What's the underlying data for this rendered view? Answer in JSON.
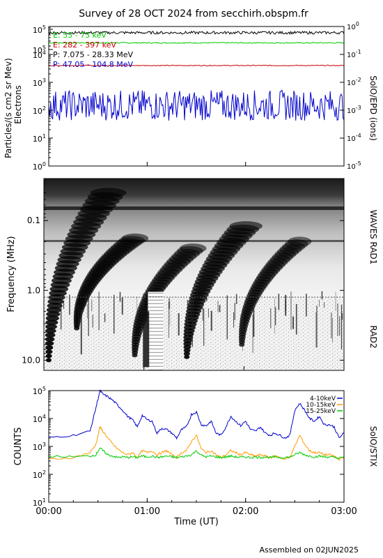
{
  "title": "Survey of 28 OCT 2024 from secchirh.obspm.fr",
  "footer": "Assembled on 02JUN2025",
  "colors": {
    "black": "#000000",
    "green": "#00cc00",
    "red": "#cc0000",
    "blue": "#0000cc",
    "orange": "#ff9900"
  },
  "chart_data": [
    {
      "type": "line",
      "title": "",
      "xlabel": "",
      "ylabel": "Particles/(s cm2 sr Mev)",
      "ylabel_sub": "Electrons",
      "right_label": "SolO/EPD (ions)",
      "yscale": "log",
      "ylim": [
        1,
        100000
      ],
      "y2lim": [
        1e-05,
        1
      ],
      "xlim": [
        0,
        3
      ],
      "yticks": [
        "10^0",
        "10^1",
        "10^2",
        "10^3",
        "10^4",
        "10^5",
        "10^5"
      ],
      "y2ticks": [
        "10^-5",
        "10^-4",
        "10^-3",
        "10^-2",
        "10^-1",
        "10^0"
      ],
      "series": [
        {
          "name": "E: 53 - 73 keV",
          "color": "#00cc00",
          "axis": "left",
          "level": 26000,
          "noise": 0.02
        },
        {
          "name": "E: 282 - 397 keV",
          "color": "#cc0000",
          "axis": "left",
          "level": 4000,
          "noise": 0.015
        },
        {
          "name": "P: 7.075 - 28.33 MeV",
          "color": "#000000",
          "axis": "right",
          "level": 0.6,
          "noise": 0.05
        },
        {
          "name": "P: 47.05 - 104.8 MeV",
          "color": "#0000cc",
          "axis": "right",
          "level": 0.0015,
          "noise": 0.25
        }
      ]
    },
    {
      "type": "heatmap",
      "title": "",
      "xlabel": "",
      "ylabel": "Frequency (MHz)",
      "yscale": "log",
      "ylim": [
        0.025,
        14
      ],
      "yticks": [
        "0.1",
        "1.0",
        "10.0"
      ],
      "xlim": [
        0,
        3
      ],
      "right_labels": [
        "WAVES RAD1",
        "RAD2"
      ],
      "bursts": [
        {
          "start": 0.02,
          "lowfreq": 0.04,
          "highfreq": 10.0,
          "intensity": 1.0
        },
        {
          "start": 0.3,
          "lowfreq": 0.18,
          "highfreq": 3.5,
          "intensity": 0.7
        },
        {
          "start": 0.88,
          "lowfreq": 0.25,
          "highfreq": 8.5,
          "intensity": 0.7
        },
        {
          "start": 1.4,
          "lowfreq": 0.12,
          "highfreq": 9.0,
          "intensity": 0.9
        },
        {
          "start": 1.95,
          "lowfreq": 0.2,
          "highfreq": 6.0,
          "intensity": 0.6
        }
      ]
    },
    {
      "type": "line",
      "title": "",
      "xlabel": "Time (UT)",
      "ylabel": "COUNTS",
      "right_label": "SolO/STIX",
      "yscale": "log",
      "ylim": [
        10,
        100000
      ],
      "xlim": [
        0,
        3
      ],
      "categories": [
        "00:00",
        "01:00",
        "02:00",
        "03:00"
      ],
      "yticks": [
        "10^1",
        "10^2",
        "10^3",
        "10^4",
        "10^5"
      ],
      "legend_position": "top-right",
      "series": [
        {
          "name": "4-10keV",
          "color": "#0000cc",
          "x": [
            0.0,
            0.25,
            0.42,
            0.48,
            0.52,
            0.55,
            0.6,
            0.65,
            0.7,
            0.75,
            0.8,
            0.85,
            0.9,
            0.95,
            1.0,
            1.05,
            1.1,
            1.15,
            1.2,
            1.25,
            1.3,
            1.35,
            1.4,
            1.45,
            1.5,
            1.55,
            1.6,
            1.65,
            1.7,
            1.75,
            1.8,
            1.85,
            1.9,
            1.95,
            2.0,
            2.05,
            2.1,
            2.15,
            2.2,
            2.25,
            2.3,
            2.35,
            2.4,
            2.45,
            2.5,
            2.55,
            2.6,
            2.65,
            2.7,
            2.75,
            2.8,
            2.85,
            2.9,
            2.95,
            3.0
          ],
          "values": [
            2100,
            2500,
            3500,
            25000,
            100000,
            75000,
            60000,
            45000,
            30000,
            20000,
            12000,
            9000,
            5000,
            13000,
            9000,
            8000,
            3000,
            4500,
            4000,
            3000,
            2000,
            4000,
            5000,
            14000,
            17000,
            6000,
            5500,
            8000,
            3000,
            2500,
            5000,
            12000,
            8000,
            5500,
            8000,
            4000,
            3500,
            5000,
            3000,
            2500,
            3000,
            2500,
            2000,
            2500,
            20000,
            35000,
            20000,
            10000,
            8000,
            12000,
            6000,
            6000,
            5000,
            2000,
            3000
          ]
        },
        {
          "name": "10-15keV",
          "color": "#ff9900",
          "x": [
            0.0,
            0.25,
            0.42,
            0.48,
            0.52,
            0.55,
            0.6,
            0.65,
            0.7,
            0.75,
            0.8,
            0.85,
            0.9,
            0.95,
            1.0,
            1.05,
            1.1,
            1.15,
            1.2,
            1.25,
            1.3,
            1.35,
            1.4,
            1.45,
            1.5,
            1.55,
            1.6,
            1.65,
            1.7,
            1.75,
            1.8,
            1.85,
            1.9,
            1.95,
            2.0,
            2.05,
            2.1,
            2.15,
            2.2,
            2.25,
            2.3,
            2.35,
            2.4,
            2.45,
            2.5,
            2.55,
            2.6,
            2.65,
            2.7,
            2.75,
            2.8,
            2.85,
            2.9,
            2.95,
            3.0
          ],
          "values": [
            350,
            400,
            600,
            1200,
            5000,
            3500,
            2000,
            1200,
            800,
            600,
            500,
            600,
            400,
            700,
            600,
            700,
            500,
            600,
            700,
            500,
            400,
            600,
            700,
            1500,
            2500,
            800,
            600,
            700,
            500,
            400,
            500,
            700,
            600,
            500,
            600,
            500,
            450,
            500,
            450,
            400,
            450,
            400,
            350,
            400,
            1000,
            2500,
            1200,
            700,
            600,
            600,
            500,
            500,
            450,
            350,
            400
          ]
        },
        {
          "name": "15-25keV",
          "color": "#00cc00",
          "x": [
            0.0,
            0.25,
            0.42,
            0.48,
            0.52,
            0.55,
            0.6,
            0.65,
            0.7,
            0.75,
            0.8,
            0.85,
            0.9,
            0.95,
            1.0,
            1.05,
            1.1,
            1.15,
            1.2,
            1.25,
            1.3,
            1.35,
            1.4,
            1.45,
            1.5,
            1.55,
            1.6,
            1.65,
            1.7,
            1.75,
            1.8,
            1.85,
            1.9,
            1.95,
            2.0,
            2.05,
            2.1,
            2.15,
            2.2,
            2.25,
            2.3,
            2.35,
            2.4,
            2.45,
            2.5,
            2.55,
            2.6,
            2.65,
            2.7,
            2.75,
            2.8,
            2.85,
            2.9,
            2.95,
            3.0
          ],
          "values": [
            450,
            420,
            450,
            500,
            900,
            700,
            500,
            450,
            400,
            420,
            400,
            420,
            400,
            450,
            420,
            450,
            400,
            420,
            450,
            420,
            400,
            420,
            450,
            500,
            700,
            480,
            420,
            450,
            420,
            400,
            420,
            450,
            420,
            400,
            420,
            400,
            420,
            400,
            420,
            400,
            420,
            400,
            400,
            420,
            500,
            600,
            500,
            450,
            420,
            450,
            420,
            420,
            400,
            380,
            400
          ]
        }
      ]
    }
  ]
}
